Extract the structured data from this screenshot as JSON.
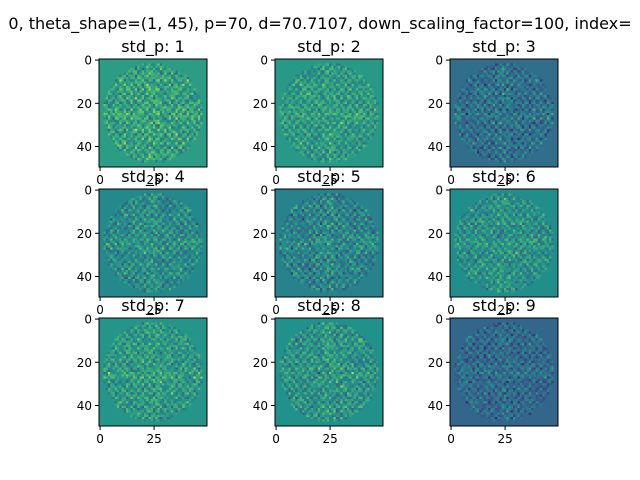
{
  "figure": {
    "suptitle": "0, theta_shape=(1, 45), p=70, d=70.7107, down_scaling_factor=100, index="
  },
  "colors": {
    "background": "#ffffff",
    "axes": "#000000",
    "viridis_stops": [
      "#440154",
      "#3b528b",
      "#21918c",
      "#5ec962",
      "#fde725"
    ]
  },
  "chart_data": [
    {
      "type": "heatmap",
      "title": "std_p: 1",
      "seed": 11,
      "level": 0.55,
      "contrast": 1.0,
      "xticks": [
        0,
        25
      ],
      "yticks": [
        0,
        20,
        40
      ],
      "xlim": [
        0,
        49
      ],
      "ylim": [
        49,
        0
      ],
      "show_xticks": false
    },
    {
      "type": "heatmap",
      "title": "std_p: 2",
      "seed": 23,
      "level": 0.53,
      "contrast": 0.85,
      "xticks": [
        0,
        25
      ],
      "yticks": [
        0,
        20,
        40
      ],
      "xlim": [
        0,
        49
      ],
      "ylim": [
        49,
        0
      ],
      "show_xticks": false
    },
    {
      "type": "heatmap",
      "title": "std_p: 3",
      "seed": 37,
      "level": 0.36,
      "contrast": 0.9,
      "xticks": [
        0,
        25
      ],
      "yticks": [
        0,
        20,
        40
      ],
      "xlim": [
        0,
        49
      ],
      "ylim": [
        49,
        0
      ],
      "show_xticks": false
    },
    {
      "type": "heatmap",
      "title": "std_p: 4",
      "seed": 41,
      "level": 0.47,
      "contrast": 0.85,
      "xticks": [
        0,
        25
      ],
      "yticks": [
        0,
        20,
        40
      ],
      "xlim": [
        0,
        49
      ],
      "ylim": [
        49,
        0
      ],
      "show_xticks": true
    },
    {
      "type": "heatmap",
      "title": "std_p: 5",
      "seed": 53,
      "level": 0.44,
      "contrast": 0.95,
      "xticks": [
        0,
        25
      ],
      "yticks": [
        0,
        20,
        40
      ],
      "xlim": [
        0,
        49
      ],
      "ylim": [
        49,
        0
      ],
      "show_xticks": true
    },
    {
      "type": "heatmap",
      "title": "std_p: 6",
      "seed": 67,
      "level": 0.49,
      "contrast": 0.85,
      "xticks": [
        0,
        25
      ],
      "yticks": [
        0,
        20,
        40
      ],
      "xlim": [
        0,
        49
      ],
      "ylim": [
        49,
        0
      ],
      "show_xticks": true
    },
    {
      "type": "heatmap",
      "title": "std_p: 7",
      "seed": 71,
      "level": 0.52,
      "contrast": 0.9,
      "xticks": [
        0,
        25
      ],
      "yticks": [
        0,
        20,
        40
      ],
      "xlim": [
        0,
        49
      ],
      "ylim": [
        49,
        0
      ],
      "show_xticks": true
    },
    {
      "type": "heatmap",
      "title": "std_p: 8",
      "seed": 83,
      "level": 0.5,
      "contrast": 0.95,
      "xticks": [
        0,
        25
      ],
      "yticks": [
        0,
        20,
        40
      ],
      "xlim": [
        0,
        49
      ],
      "ylim": [
        49,
        0
      ],
      "show_xticks": true
    },
    {
      "type": "heatmap",
      "title": "std_p: 9",
      "seed": 97,
      "level": 0.33,
      "contrast": 0.8,
      "xticks": [
        0,
        25
      ],
      "yticks": [
        0,
        20,
        40
      ],
      "xlim": [
        0,
        49
      ],
      "ylim": [
        49,
        0
      ],
      "show_xticks": true
    }
  ]
}
